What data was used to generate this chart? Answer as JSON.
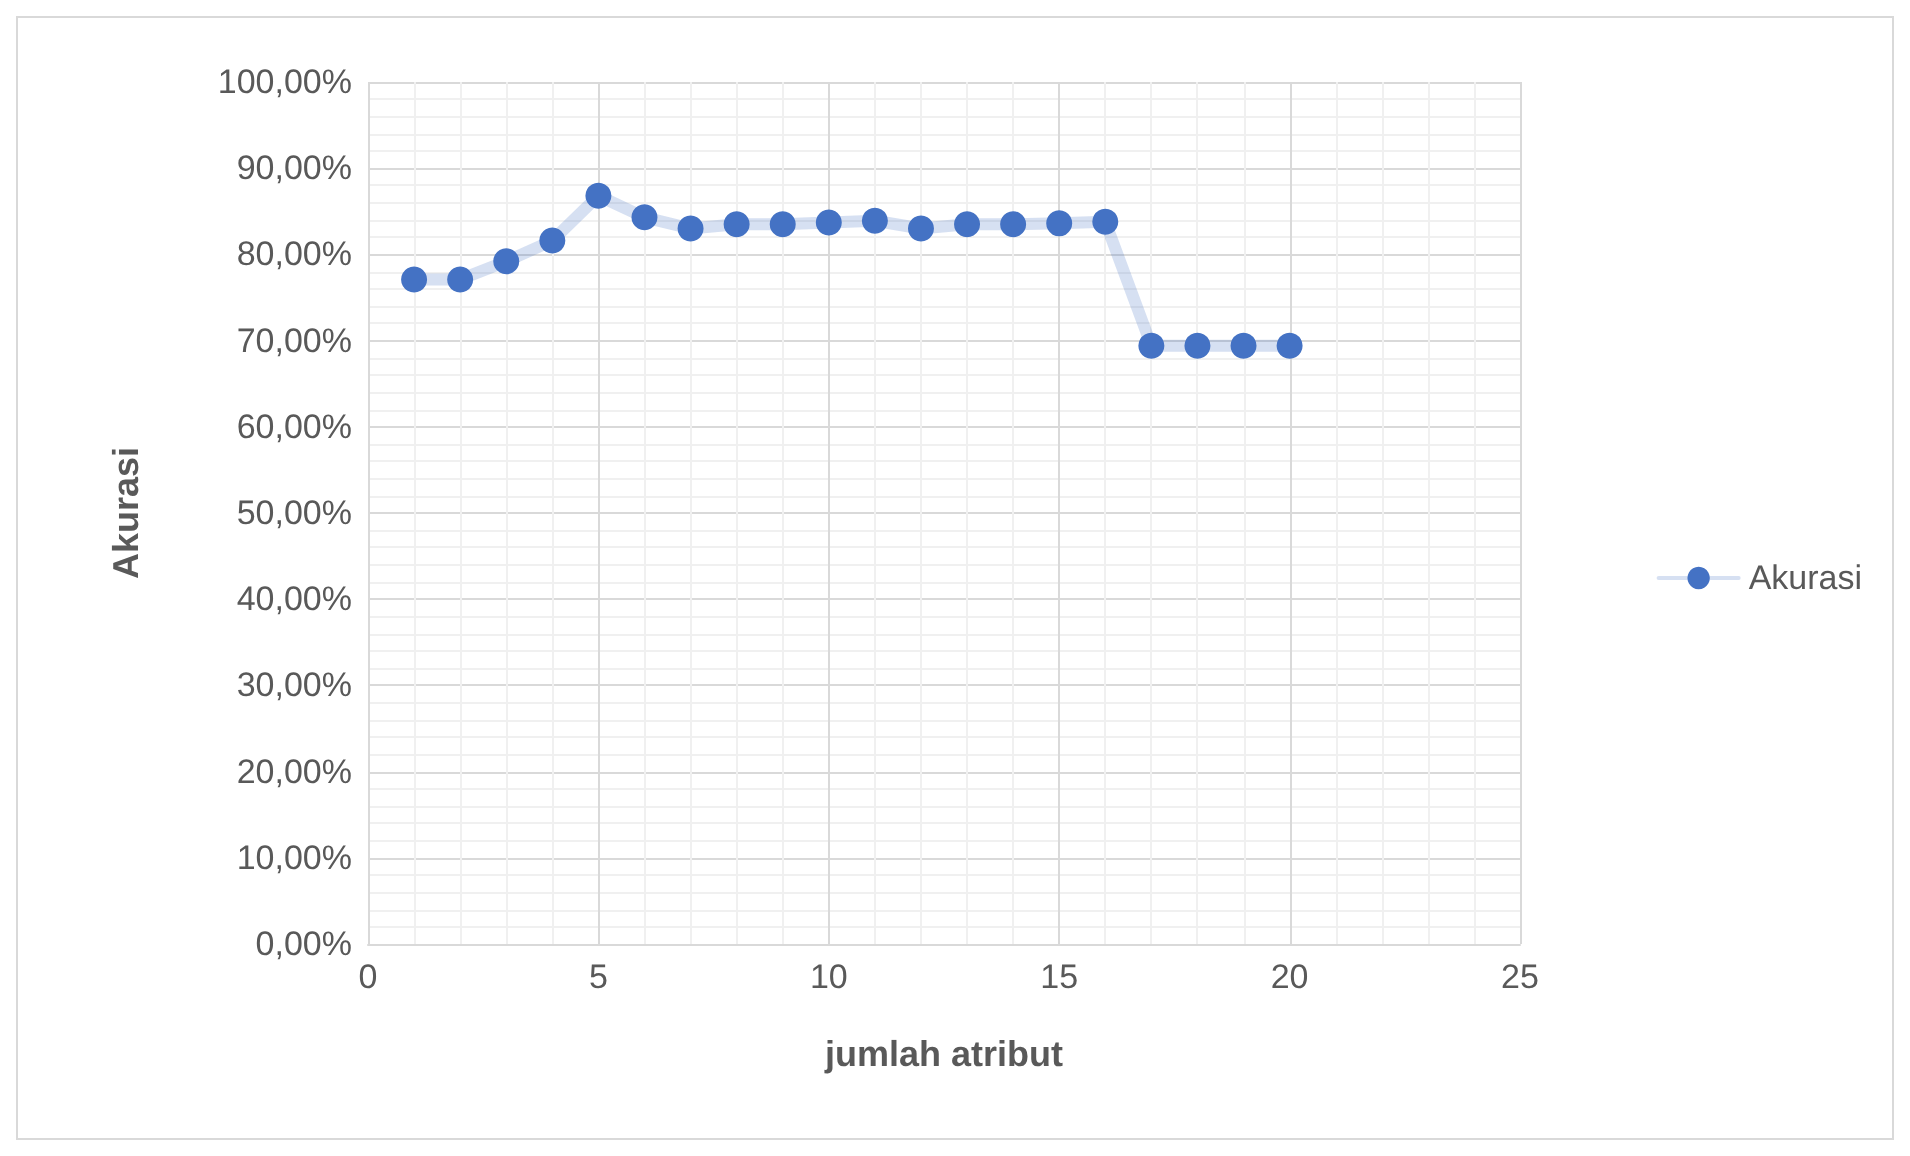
{
  "chart_data": {
    "type": "line",
    "xlabel": "jumlah atribut",
    "ylabel": "Akurasi",
    "x": [
      1,
      2,
      3,
      4,
      5,
      6,
      7,
      8,
      9,
      10,
      11,
      12,
      13,
      14,
      15,
      16,
      17,
      18,
      19,
      20
    ],
    "series": [
      {
        "name": "Akurasi",
        "color": "#4472c4",
        "values": [
          77.1,
          77.1,
          79.2,
          81.6,
          86.8,
          84.3,
          83.0,
          83.5,
          83.5,
          83.7,
          83.9,
          83.0,
          83.5,
          83.5,
          83.6,
          83.8,
          69.4,
          69.4,
          69.4,
          69.4
        ]
      }
    ],
    "xlim": [
      0,
      25
    ],
    "xticks": [
      0,
      5,
      10,
      15,
      20,
      25
    ],
    "ylim": [
      0,
      100
    ],
    "yticks": [
      {
        "value": 0,
        "label": "0,00%"
      },
      {
        "value": 10,
        "label": "10,00%"
      },
      {
        "value": 20,
        "label": "20,00%"
      },
      {
        "value": 30,
        "label": "30,00%"
      },
      {
        "value": 40,
        "label": "40,00%"
      },
      {
        "value": 50,
        "label": "50,00%"
      },
      {
        "value": 60,
        "label": "60,00%"
      },
      {
        "value": 70,
        "label": "70,00%"
      },
      {
        "value": 80,
        "label": "80,00%"
      },
      {
        "value": 90,
        "label": "90,00%"
      },
      {
        "value": 100,
        "label": "100,00%"
      }
    ],
    "grid": true,
    "legend": "right",
    "marker": "circle",
    "line_style": "solid"
  }
}
